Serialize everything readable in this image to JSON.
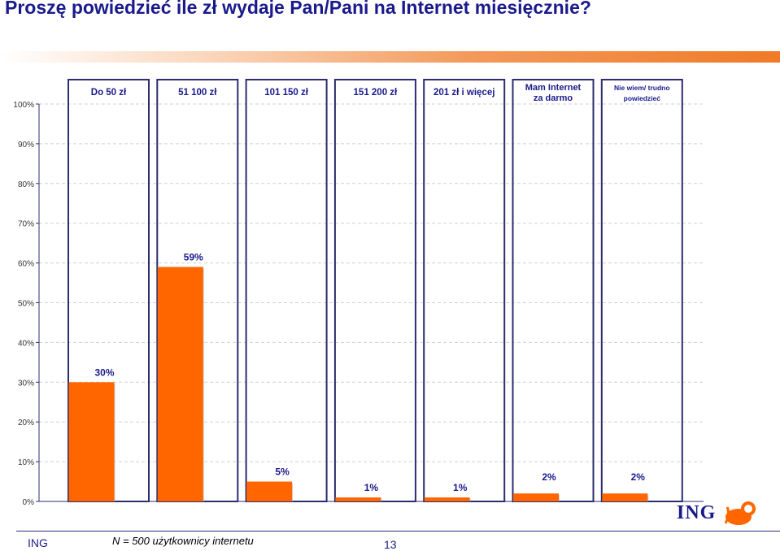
{
  "title": "Proszę powiedzieć ile zł wydaje Pan/Pani na Internet miesięcznie?",
  "footer": {
    "brand": "ING",
    "note": "N = 500 użytkownicy internetu",
    "page": "13"
  },
  "logo": {
    "text": "ING",
    "icon": "lion-icon"
  },
  "colors": {
    "bar": "#ff6600",
    "title": "#1a1a8c",
    "frame": "#2c2c70",
    "grid": "#d0d0d0"
  },
  "chart_data": {
    "type": "bar",
    "categories": [
      "Do 50 zł",
      "51 100 zł",
      "101 150 zł",
      "151 200 zł",
      "201 zł i więcej",
      "Mam Internet za darmo",
      "Nie wiem/ trudno powiedzieć"
    ],
    "category_lines": [
      [
        "Do 50 zł"
      ],
      [
        "51 100 zł"
      ],
      [
        "101 150 zł"
      ],
      [
        "151 200 zł"
      ],
      [
        "201 zł i więcej"
      ],
      [
        "Mam Internet",
        "za darmo"
      ],
      [
        "Nie wiem/ trudno",
        "powiedzieć"
      ]
    ],
    "values": [
      30,
      59,
      5,
      1,
      1,
      2,
      2
    ],
    "value_labels": [
      "30%",
      "59%",
      "5%",
      "1%",
      "1%",
      "2%",
      "2%"
    ],
    "ylim": [
      0,
      100
    ],
    "yticks": [
      "0%",
      "10%",
      "20%",
      "30%",
      "40%",
      "50%",
      "60%",
      "70%",
      "80%",
      "90%",
      "100%"
    ],
    "grid": true,
    "xlabel": "",
    "ylabel": ""
  }
}
